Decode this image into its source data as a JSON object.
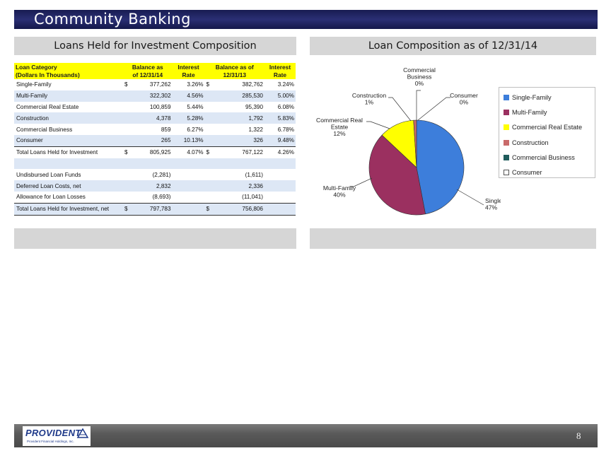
{
  "slide": {
    "title": "Community Banking",
    "page_number": "8"
  },
  "left_panel": {
    "heading": "Loans Held for Investment Composition"
  },
  "right_panel": {
    "heading": "Loan Composition as of 12/31/14"
  },
  "table": {
    "header": {
      "c1": "Loan Category",
      "c1b": "(Dollars In Thousands)",
      "c2": "Balance as",
      "c2b": "of 12/31/14",
      "c3": "Interest",
      "c3b": "Rate",
      "c4": "Balance as of",
      "c4b": "12/31/13",
      "c5": "Interest",
      "c5b": "Rate"
    },
    "rows": [
      {
        "label": "Single-Family",
        "cur1": "$",
        "bal14": "377,262",
        "rate14": "3.26%",
        "cur2": "$",
        "bal13": "382,762",
        "rate13": "3.24%"
      },
      {
        "label": "Multi-Family",
        "cur1": "",
        "bal14": "322,302",
        "rate14": "4.56%",
        "cur2": "",
        "bal13": "285,530",
        "rate13": "5.00%"
      },
      {
        "label": "Commercial Real Estate",
        "cur1": "",
        "bal14": "100,859",
        "rate14": "5.44%",
        "cur2": "",
        "bal13": "95,390",
        "rate13": "6.08%"
      },
      {
        "label": "Construction",
        "cur1": "",
        "bal14": "4,378",
        "rate14": "5.28%",
        "cur2": "",
        "bal13": "1,792",
        "rate13": "5.83%"
      },
      {
        "label": "Commercial Business",
        "cur1": "",
        "bal14": "859",
        "rate14": "6.27%",
        "cur2": "",
        "bal13": "1,322",
        "rate13": "6.78%"
      },
      {
        "label": "Consumer",
        "cur1": "",
        "bal14": "265",
        "rate14": "10.13%",
        "cur2": "",
        "bal13": "326",
        "rate13": "9.48%"
      },
      {
        "label": "Total Loans Held for Investment",
        "cur1": "$",
        "bal14": "805,925",
        "rate14": "4.07%",
        "cur2": "$",
        "bal13": "767,122",
        "rate13": "4.26%"
      },
      {
        "label": "",
        "cur1": "",
        "bal14": "",
        "rate14": "",
        "cur2": "",
        "bal13": "",
        "rate13": ""
      },
      {
        "label": "Undisbursed Loan Funds",
        "cur1": "",
        "bal14": "(2,281)",
        "rate14": "",
        "cur2": "",
        "bal13": "(1,611)",
        "rate13": ""
      },
      {
        "label": "Deferred Loan Costs, net",
        "cur1": "",
        "bal14": "2,832",
        "rate14": "",
        "cur2": "",
        "bal13": "2,336",
        "rate13": ""
      },
      {
        "label": "Allowance for Loan Losses",
        "cur1": "",
        "bal14": "(8,693)",
        "rate14": "",
        "cur2": "",
        "bal13": "(11,041)",
        "rate13": ""
      },
      {
        "label": "Total Loans Held for Investment, net",
        "cur1": "$",
        "bal14": "797,783",
        "rate14": "",
        "cur2": "$",
        "bal13": "756,806",
        "rate13": ""
      }
    ]
  },
  "chart_data": {
    "type": "pie",
    "title": "Loan Composition as of 12/31/14",
    "slices": [
      {
        "name": "Single-Family",
        "value": 47,
        "color": "#3d7edb",
        "label": [
          "Single-Family",
          "47%"
        ]
      },
      {
        "name": "Multi-Family",
        "value": 40,
        "color": "#9b3060",
        "label": [
          "Multi-Family",
          "40%"
        ]
      },
      {
        "name": "Commercial Real Estate",
        "value": 12,
        "color": "#ffff00",
        "label": [
          "Commercial Real",
          "Estate",
          "12%"
        ]
      },
      {
        "name": "Construction",
        "value": 1,
        "color": "#c96a6a",
        "label": [
          "Construction",
          "1%"
        ]
      },
      {
        "name": "Commercial Business",
        "value": 0,
        "color": "#1f5c5c",
        "label": [
          "Commercial",
          "Business",
          "0%"
        ]
      },
      {
        "name": "Consumer",
        "value": 0,
        "color": "#ffffff",
        "label": [
          "Consumer",
          "0%"
        ]
      }
    ],
    "legend": [
      "Single-Family",
      "Multi-Family",
      "Commercial Real Estate",
      "Construction",
      "Commercial Business",
      "Consumer"
    ],
    "legend_position": "right"
  },
  "logo": {
    "name": "PROVIDENT",
    "subtitle": "Provident Financial Holdings, Inc."
  }
}
